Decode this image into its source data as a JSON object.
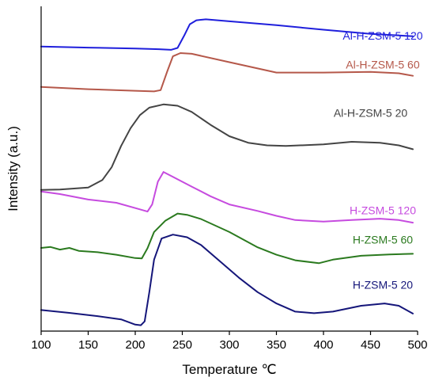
{
  "chart_data": {
    "type": "line",
    "title": "",
    "xlabel": "Temperature ℃",
    "ylabel": "Intensity (a.u.)",
    "xlim": [
      100,
      500
    ],
    "ylim": [
      0,
      100
    ],
    "xticks": [
      "100",
      "150",
      "200",
      "250",
      "300",
      "350",
      "400",
      "450",
      "500"
    ],
    "yticks_visible": false,
    "grid": false,
    "legend": "inline-labels",
    "series": [
      {
        "name": "Al-H-ZSM-5 120",
        "color": "#1f1fdc",
        "label_x": 463,
        "label_y": 89.8,
        "points": [
          [
            100,
            87.6
          ],
          [
            150,
            87.3
          ],
          [
            200,
            87.0
          ],
          [
            225,
            86.8
          ],
          [
            238,
            86.6
          ],
          [
            245,
            87.2
          ],
          [
            252,
            91.0
          ],
          [
            258,
            94.5
          ],
          [
            265,
            95.7
          ],
          [
            275,
            96.0
          ],
          [
            300,
            95.4
          ],
          [
            350,
            94.2
          ],
          [
            400,
            92.8
          ],
          [
            450,
            91.5
          ],
          [
            495,
            90.8
          ]
        ]
      },
      {
        "name": "Al-H-ZSM-5 60",
        "color": "#b5584a",
        "label_x": 463,
        "label_y": 80.8,
        "points": [
          [
            100,
            75.2
          ],
          [
            150,
            74.5
          ],
          [
            200,
            74.0
          ],
          [
            220,
            73.8
          ],
          [
            227,
            74.2
          ],
          [
            234,
            80.0
          ],
          [
            240,
            84.6
          ],
          [
            248,
            85.6
          ],
          [
            260,
            85.4
          ],
          [
            300,
            82.8
          ],
          [
            350,
            79.6
          ],
          [
            400,
            79.6
          ],
          [
            450,
            79.8
          ],
          [
            480,
            79.4
          ],
          [
            495,
            78.6
          ]
        ]
      },
      {
        "name": "Al-H-ZSM-5 20",
        "color": "#444444",
        "label_x": 450,
        "label_y": 66.0,
        "points": [
          [
            100,
            43.5
          ],
          [
            120,
            43.6
          ],
          [
            150,
            44.2
          ],
          [
            165,
            46.5
          ],
          [
            175,
            50.5
          ],
          [
            185,
            57.0
          ],
          [
            195,
            62.5
          ],
          [
            205,
            66.5
          ],
          [
            215,
            68.8
          ],
          [
            230,
            69.8
          ],
          [
            245,
            69.4
          ],
          [
            260,
            67.5
          ],
          [
            280,
            63.5
          ],
          [
            300,
            60.0
          ],
          [
            320,
            58.0
          ],
          [
            340,
            57.2
          ],
          [
            360,
            57.0
          ],
          [
            400,
            57.5
          ],
          [
            430,
            58.3
          ],
          [
            460,
            58.0
          ],
          [
            480,
            57.2
          ],
          [
            495,
            56.0
          ]
        ]
      },
      {
        "name": "H-ZSM-5 120",
        "color": "#c64bdf",
        "label_x": 463,
        "label_y": 36.0,
        "points": [
          [
            100,
            43.0
          ],
          [
            120,
            42.2
          ],
          [
            150,
            40.5
          ],
          [
            180,
            39.5
          ],
          [
            205,
            37.5
          ],
          [
            213,
            36.8
          ],
          [
            218,
            39.0
          ],
          [
            224,
            46.0
          ],
          [
            230,
            49.0
          ],
          [
            240,
            47.5
          ],
          [
            260,
            44.5
          ],
          [
            280,
            41.5
          ],
          [
            300,
            39.0
          ],
          [
            330,
            37.0
          ],
          [
            350,
            35.5
          ],
          [
            370,
            34.2
          ],
          [
            400,
            33.7
          ],
          [
            430,
            34.2
          ],
          [
            460,
            34.6
          ],
          [
            480,
            34.2
          ],
          [
            495,
            33.4
          ]
        ]
      },
      {
        "name": "H-ZSM-5 60",
        "color": "#2b7a1f",
        "label_x": 463,
        "label_y": 27.0,
        "points": [
          [
            100,
            25.6
          ],
          [
            110,
            25.9
          ],
          [
            120,
            25.1
          ],
          [
            130,
            25.6
          ],
          [
            140,
            24.7
          ],
          [
            160,
            24.3
          ],
          [
            180,
            23.5
          ],
          [
            200,
            22.5
          ],
          [
            207,
            22.4
          ],
          [
            213,
            25.5
          ],
          [
            220,
            30.5
          ],
          [
            232,
            34.0
          ],
          [
            245,
            36.2
          ],
          [
            255,
            35.8
          ],
          [
            270,
            34.5
          ],
          [
            300,
            30.5
          ],
          [
            330,
            25.8
          ],
          [
            350,
            23.5
          ],
          [
            370,
            21.8
          ],
          [
            395,
            20.9
          ],
          [
            410,
            22.0
          ],
          [
            440,
            23.2
          ],
          [
            470,
            23.6
          ],
          [
            495,
            23.8
          ]
        ]
      },
      {
        "name": "H-ZSM-5 20",
        "color": "#15167a",
        "label_x": 463,
        "label_y": 13.0,
        "points": [
          [
            100,
            6.5
          ],
          [
            130,
            5.6
          ],
          [
            160,
            4.6
          ],
          [
            185,
            3.6
          ],
          [
            200,
            2.0
          ],
          [
            206,
            1.8
          ],
          [
            210,
            3.0
          ],
          [
            215,
            12.0
          ],
          [
            220,
            22.0
          ],
          [
            228,
            28.5
          ],
          [
            240,
            29.7
          ],
          [
            255,
            28.9
          ],
          [
            270,
            26.5
          ],
          [
            290,
            21.5
          ],
          [
            310,
            16.5
          ],
          [
            330,
            12.0
          ],
          [
            350,
            8.5
          ],
          [
            370,
            6.0
          ],
          [
            390,
            5.5
          ],
          [
            410,
            6.0
          ],
          [
            440,
            7.8
          ],
          [
            465,
            8.5
          ],
          [
            480,
            7.8
          ],
          [
            495,
            5.4
          ]
        ]
      }
    ]
  }
}
